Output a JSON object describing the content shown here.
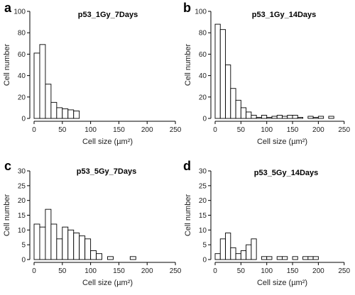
{
  "chart_data": [
    {
      "type": "bar",
      "panel": "a",
      "title": "p53_1Gy_7Days",
      "xlabel": "Cell size (µm²)",
      "ylabel": "Cell number",
      "xlim": [
        0,
        260
      ],
      "ylim": [
        0,
        100
      ],
      "xticks": [
        0,
        50,
        100,
        150,
        200,
        250
      ],
      "yticks": [
        0,
        20,
        40,
        60,
        80,
        100
      ],
      "bin_width": 10,
      "bin_start": 0,
      "values": [
        61,
        69,
        32,
        15,
        10,
        9,
        8,
        7
      ]
    },
    {
      "type": "bar",
      "panel": "b",
      "title": "p53_1Gy_14Days",
      "xlabel": "Cell size (µm²)",
      "ylabel": "Cell number",
      "xlim": [
        0,
        260
      ],
      "ylim": [
        0,
        100
      ],
      "xticks": [
        0,
        50,
        100,
        150,
        200,
        250
      ],
      "yticks": [
        0,
        20,
        40,
        60,
        80,
        100
      ],
      "bin_width": 10,
      "bin_start": 0,
      "values": [
        88,
        83,
        50,
        28,
        17,
        10,
        6,
        3,
        1,
        3,
        1,
        2,
        3,
        2,
        3,
        3,
        1,
        0,
        2,
        1,
        2,
        0,
        2
      ]
    },
    {
      "type": "bar",
      "panel": "c",
      "title": "p53_5Gy_7Days",
      "xlabel": "Cell size (µm²)",
      "ylabel": "Cell number",
      "xlim": [
        0,
        260
      ],
      "ylim": [
        0,
        30
      ],
      "xticks": [
        0,
        50,
        100,
        150,
        200,
        250
      ],
      "yticks": [
        0,
        5,
        10,
        15,
        20,
        25,
        30
      ],
      "bin_width": 10,
      "bin_start": 0,
      "values": [
        12,
        11,
        17,
        12,
        7,
        11,
        10,
        9,
        8,
        7,
        3,
        2,
        0,
        1,
        0,
        0,
        0,
        1
      ]
    },
    {
      "type": "bar",
      "panel": "d",
      "title": "p53_5Gy_14Days",
      "xlabel": "Cell size (µm²)",
      "ylabel": "Cell number",
      "xlim": [
        0,
        260
      ],
      "ylim": [
        0,
        30
      ],
      "xticks": [
        0,
        50,
        100,
        150,
        200,
        250
      ],
      "yticks": [
        0,
        5,
        10,
        15,
        20,
        25,
        30
      ],
      "bin_width": 10,
      "bin_start": 0,
      "values": [
        2,
        7,
        9,
        4,
        2,
        3,
        5,
        7,
        0,
        1,
        1,
        0,
        1,
        1,
        0,
        1,
        0,
        1,
        1,
        1
      ]
    }
  ]
}
